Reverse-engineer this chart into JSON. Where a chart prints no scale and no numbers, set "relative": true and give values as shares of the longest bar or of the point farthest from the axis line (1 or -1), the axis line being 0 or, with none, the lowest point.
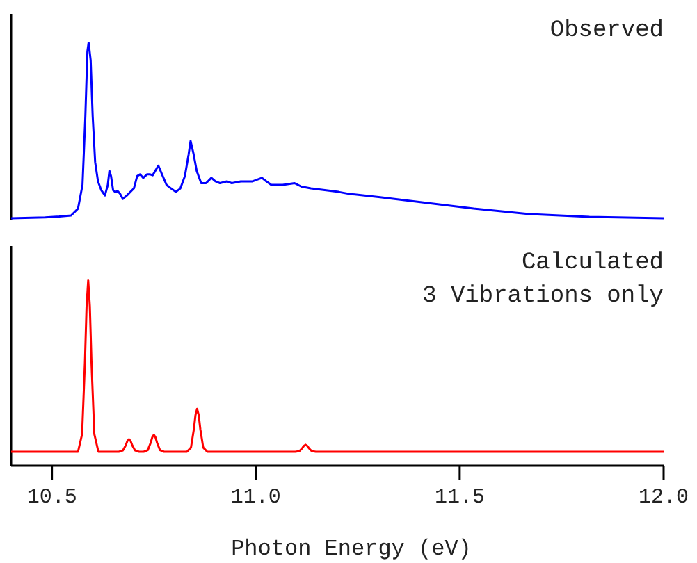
{
  "chart_data": [
    {
      "type": "line",
      "title": "Observed",
      "relative": true,
      "xlim": [
        10.4,
        12.0
      ],
      "tick_labels": false,
      "series": [
        {
          "color": "#0000ff",
          "x": [
            10.4,
            10.484,
            10.518,
            10.547,
            10.564,
            10.575,
            10.582,
            10.587,
            10.59,
            10.595,
            10.6,
            10.606,
            10.613,
            10.621,
            10.63,
            10.637,
            10.641,
            10.645,
            10.65,
            10.655,
            10.661,
            10.667,
            10.674,
            10.684,
            10.701,
            10.709,
            10.716,
            10.724,
            10.733,
            10.741,
            10.747,
            10.761,
            10.77,
            10.781,
            10.792,
            10.804,
            10.815,
            10.826,
            10.835,
            10.84,
            10.847,
            10.855,
            10.866,
            10.878,
            10.891,
            10.901,
            10.912,
            10.929,
            10.941,
            10.963,
            10.992,
            11.015,
            11.026,
            11.038,
            11.066,
            11.095,
            11.112,
            11.135,
            11.169,
            11.203,
            11.226,
            11.305,
            11.534,
            11.671,
            11.818,
            12.0
          ],
          "values": [
            0,
            0.005,
            0.01,
            0.016,
            0.055,
            0.19,
            0.58,
            0.95,
            1,
            0.9,
            0.58,
            0.32,
            0.21,
            0.16,
            0.13,
            0.19,
            0.27,
            0.24,
            0.16,
            0.15,
            0.155,
            0.14,
            0.11,
            0.13,
            0.17,
            0.24,
            0.25,
            0.23,
            0.25,
            0.25,
            0.245,
            0.3,
            0.25,
            0.19,
            0.17,
            0.15,
            0.17,
            0.24,
            0.36,
            0.44,
            0.37,
            0.27,
            0.2,
            0.2,
            0.23,
            0.21,
            0.2,
            0.21,
            0.2,
            0.21,
            0.21,
            0.23,
            0.21,
            0.19,
            0.19,
            0.2,
            0.18,
            0.17,
            0.16,
            0.15,
            0.14,
            0.12,
            0.055,
            0.024,
            0.008,
            0
          ]
        }
      ]
    },
    {
      "type": "line",
      "title": "Calculated",
      "subtitle": "3 Vibrations only",
      "xlabel": "Photon Energy (eV)",
      "relative": true,
      "xlim": [
        10.4,
        12.0
      ],
      "xticks": [
        10.5,
        {
          "value": 11,
          "label": "11.0"
        },
        11.5,
        {
          "value": 12,
          "label": "12.0"
        }
      ],
      "tick_labels": "x",
      "series": [
        {
          "color": "#ff0000",
          "x": [
            10.4,
            10.564,
            10.574,
            10.581,
            10.585,
            10.589,
            10.593,
            10.597,
            10.604,
            10.614,
            10.664,
            10.674,
            10.681,
            10.685,
            10.689,
            10.693,
            10.697,
            10.704,
            10.714,
            10.725,
            10.735,
            10.742,
            10.746,
            10.75,
            10.754,
            10.758,
            10.765,
            10.775,
            10.831,
            10.841,
            10.848,
            10.852,
            10.856,
            10.86,
            10.864,
            10.871,
            10.881,
            11.097,
            11.107,
            11.114,
            11.118,
            11.122,
            11.126,
            11.13,
            11.137,
            11.147,
            12.0
          ],
          "values": [
            0.075,
            0.075,
            0.17,
            0.56,
            0.86,
            1,
            0.86,
            0.56,
            0.17,
            0.075,
            0.075,
            0.082,
            0.11,
            0.133,
            0.143,
            0.133,
            0.11,
            0.082,
            0.075,
            0.075,
            0.084,
            0.123,
            0.153,
            0.167,
            0.153,
            0.123,
            0.084,
            0.075,
            0.075,
            0.098,
            0.196,
            0.272,
            0.307,
            0.272,
            0.196,
            0.098,
            0.075,
            0.075,
            0.079,
            0.095,
            0.107,
            0.113,
            0.107,
            0.095,
            0.079,
            0.075,
            0.075
          ]
        }
      ]
    }
  ]
}
